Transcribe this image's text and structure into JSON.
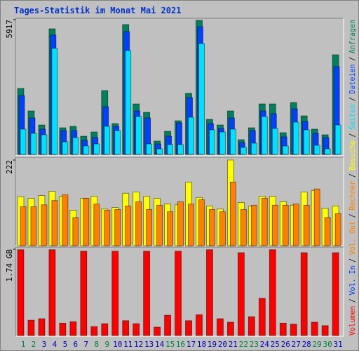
{
  "chart_data": [
    {
      "type": "bar",
      "title": "Tages-Statistik im Monat Mai 2021",
      "ylim": [
        0,
        5917
      ],
      "yticks": [
        5917
      ],
      "series": [
        {
          "name": "Anfragen",
          "color": "#00805c",
          "values": [
            2897,
            1911,
            1294,
            5517,
            1171,
            1233,
            801,
            986,
            2805,
            1356,
            5702,
            2219,
            1849,
            586,
            1017,
            1479,
            2681,
            5887,
            1541,
            1294,
            1911,
            647,
            1171,
            2219,
            2219,
            955,
            2281,
            1695,
            1110,
            863,
            4376
          ]
        },
        {
          "name": "Dateien",
          "color": "#0040ff",
          "values": [
            2589,
            1603,
            1110,
            5240,
            1048,
            1048,
            616,
            740,
            2096,
            1233,
            5394,
            1911,
            1603,
            462,
            801,
            1387,
            2496,
            5609,
            1356,
            1140,
            1603,
            524,
            1048,
            1911,
            1788,
            770,
            2003,
            1449,
            925,
            740,
            3853
          ]
        },
        {
          "name": "Seiten",
          "color": "#00e0ff",
          "values": [
            1110,
            925,
            863,
            4654,
            555,
            740,
            370,
            462,
            1233,
            1048,
            4561,
            1664,
            462,
            247,
            431,
            431,
            1633,
            4870,
            1079,
            986,
            1110,
            308,
            493,
            1664,
            1140,
            370,
            1418,
            1079,
            401,
            247,
            1294
          ]
        }
      ]
    },
    {
      "type": "bar",
      "ylim": [
        0,
        222
      ],
      "yticks": [
        222
      ],
      "series": [
        {
          "name": "Besuche",
          "color": "#ffff00",
          "values": [
            127,
            123,
            130,
            141,
            128,
            92,
            123,
            128,
            95,
            99,
            136,
            139,
            128,
            123,
            108,
            106,
            165,
            125,
            103,
            95,
            222,
            112,
            103,
            128,
            128,
            114,
            105,
            139,
            143,
            97,
            103
          ]
        },
        {
          "name": "Rechner",
          "color": "#ff8000",
          "values": [
            101,
            101,
            106,
            117,
            132,
            73,
            123,
            108,
            92,
            94,
            103,
            114,
            94,
            105,
            88,
            114,
            108,
            119,
            94,
            88,
            165,
            94,
            105,
            123,
            105,
            105,
            108,
            105,
            147,
            73,
            83
          ]
        }
      ]
    },
    {
      "type": "bar",
      "ylim": [
        0,
        1.74
      ],
      "yticks": [
        {
          "value": 1.74,
          "label": "1.74 GB"
        }
      ],
      "categories": [
        "1",
        "2",
        "3",
        "4",
        "5",
        "6",
        "7",
        "8",
        "9",
        "10",
        "11",
        "12",
        "13",
        "14",
        "15",
        "16",
        "17",
        "18",
        "19",
        "20",
        "21",
        "22",
        "23",
        "24",
        "25",
        "26",
        "27",
        "28",
        "29",
        "30",
        "31"
      ],
      "category_colors": [
        "#008040",
        "#008040",
        "#0000c0",
        "#0000c0",
        "#0000c0",
        "#0000c0",
        "#0000c0",
        "#008040",
        "#008040",
        "#0000c0",
        "#0000c0",
        "#0000c0",
        "#0000c0",
        "#0000c0",
        "#008040",
        "#008040",
        "#0000c0",
        "#0000c0",
        "#0000c0",
        "#0000c0",
        "#0000c0",
        "#008040",
        "#008040",
        "#0000c0",
        "#0000c0",
        "#0000c0",
        "#0000c0",
        "#0000c0",
        "#008040",
        "#008040",
        "#0000c0"
      ],
      "series": [
        {
          "name": "Volumen",
          "color": "#ff0000",
          "values": [
            1.73,
            0.31,
            0.34,
            1.73,
            0.25,
            0.28,
            1.7,
            0.18,
            0.24,
            1.7,
            0.3,
            0.24,
            1.7,
            0.17,
            0.41,
            1.7,
            0.3,
            0.42,
            1.73,
            0.34,
            0.27,
            1.67,
            0.38,
            0.75,
            1.73,
            0.25,
            0.23,
            1.67,
            0.27,
            0.2,
            1.67
          ]
        }
      ],
      "legend_extra": [
        {
          "name": "Vol. In",
          "color": "#0040ff"
        },
        {
          "name": "Vol. Out",
          "color": "#ff8000"
        }
      ]
    }
  ],
  "legend_separator": "/"
}
